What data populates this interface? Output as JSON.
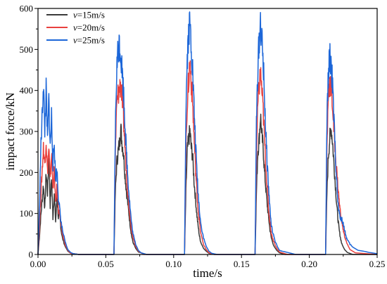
{
  "chart_data": {
    "type": "line",
    "title": "",
    "xlabel": "time/s",
    "ylabel": "impact force/kN",
    "xlim": [
      0,
      0.25
    ],
    "ylim": [
      0,
      600
    ],
    "x_ticks": [
      "0.00",
      "0.05",
      "0.10",
      "0.15",
      "0.20",
      "0.25"
    ],
    "y_ticks": [
      "0",
      "100",
      "200",
      "300",
      "400",
      "500",
      "600"
    ],
    "grid": false,
    "legend_position": "top-left",
    "series": [
      {
        "name": "v=15m/s",
        "legend_var": "v",
        "legend_rest": "=15m/s",
        "color": "#3a3a3a",
        "x": [
          0,
          0.001,
          0.002,
          0.003,
          0.004,
          0.005,
          0.006,
          0.007,
          0.008,
          0.009,
          0.01,
          0.011,
          0.012,
          0.013,
          0.014,
          0.015,
          0.016,
          0.017,
          0.018,
          0.02,
          0.022,
          0.024,
          0.03,
          0.056,
          0.057,
          0.058,
          0.059,
          0.06,
          0.061,
          0.062,
          0.063,
          0.064,
          0.065,
          0.066,
          0.067,
          0.068,
          0.069,
          0.07,
          0.072,
          0.074,
          0.08,
          0.108,
          0.109,
          0.11,
          0.111,
          0.112,
          0.113,
          0.114,
          0.115,
          0.116,
          0.117,
          0.118,
          0.119,
          0.12,
          0.122,
          0.124,
          0.126,
          0.13,
          0.16,
          0.161,
          0.162,
          0.163,
          0.164,
          0.165,
          0.166,
          0.167,
          0.168,
          0.169,
          0.17,
          0.171,
          0.172,
          0.174,
          0.176,
          0.178,
          0.182,
          0.212,
          0.213,
          0.214,
          0.215,
          0.216,
          0.217,
          0.218,
          0.219,
          0.22,
          0.221,
          0.222,
          0.223,
          0.224,
          0.226,
          0.228,
          0.232,
          0.25
        ],
        "y": [
          0,
          40,
          90,
          130,
          170,
          110,
          200,
          150,
          240,
          120,
          190,
          90,
          150,
          80,
          140,
          90,
          100,
          60,
          40,
          20,
          8,
          3,
          0,
          0,
          150,
          220,
          250,
          270,
          310,
          270,
          250,
          200,
          160,
          130,
          100,
          70,
          45,
          30,
          15,
          6,
          0,
          0,
          150,
          250,
          280,
          300,
          260,
          240,
          180,
          140,
          100,
          70,
          45,
          30,
          15,
          8,
          3,
          0,
          0,
          150,
          250,
          280,
          340,
          290,
          260,
          200,
          160,
          120,
          90,
          60,
          40,
          20,
          10,
          4,
          0,
          0,
          150,
          240,
          280,
          310,
          280,
          230,
          180,
          130,
          90,
          60,
          40,
          25,
          12,
          5,
          0,
          0
        ]
      },
      {
        "name": "v=20m/s",
        "legend_var": "v",
        "legend_rest": "=20m/s",
        "color": "#e8413e",
        "x": [
          0,
          0.001,
          0.002,
          0.003,
          0.004,
          0.005,
          0.006,
          0.007,
          0.008,
          0.009,
          0.01,
          0.011,
          0.012,
          0.013,
          0.014,
          0.015,
          0.016,
          0.017,
          0.018,
          0.02,
          0.022,
          0.024,
          0.03,
          0.056,
          0.057,
          0.058,
          0.059,
          0.06,
          0.061,
          0.062,
          0.063,
          0.064,
          0.065,
          0.066,
          0.067,
          0.068,
          0.069,
          0.07,
          0.072,
          0.074,
          0.078,
          0.108,
          0.109,
          0.11,
          0.111,
          0.112,
          0.113,
          0.114,
          0.115,
          0.116,
          0.117,
          0.118,
          0.119,
          0.12,
          0.122,
          0.124,
          0.126,
          0.13,
          0.16,
          0.161,
          0.162,
          0.163,
          0.164,
          0.165,
          0.166,
          0.167,
          0.168,
          0.169,
          0.17,
          0.171,
          0.172,
          0.174,
          0.176,
          0.178,
          0.184,
          0.212,
          0.213,
          0.214,
          0.215,
          0.216,
          0.217,
          0.218,
          0.219,
          0.22,
          0.221,
          0.222,
          0.223,
          0.224,
          0.225,
          0.226,
          0.228,
          0.23,
          0.234,
          0.25
        ],
        "y": [
          0,
          60,
          140,
          200,
          260,
          220,
          280,
          200,
          260,
          180,
          250,
          160,
          210,
          120,
          170,
          110,
          100,
          70,
          50,
          25,
          10,
          3,
          0,
          0,
          250,
          360,
          390,
          400,
          420,
          380,
          330,
          270,
          210,
          160,
          120,
          90,
          60,
          40,
          20,
          8,
          0,
          0,
          250,
          370,
          420,
          470,
          420,
          370,
          290,
          220,
          160,
          110,
          80,
          50,
          25,
          12,
          4,
          0,
          0,
          230,
          360,
          410,
          440,
          400,
          350,
          280,
          210,
          160,
          110,
          80,
          50,
          30,
          15,
          6,
          0,
          0,
          260,
          390,
          420,
          410,
          370,
          310,
          260,
          210,
          170,
          130,
          100,
          80,
          60,
          45,
          25,
          12,
          4,
          0
        ]
      },
      {
        "name": "v=25m/s",
        "legend_var": "v",
        "legend_rest": "=25m/s",
        "color": "#1c66d8",
        "x": [
          0,
          0.001,
          0.002,
          0.003,
          0.004,
          0.005,
          0.006,
          0.007,
          0.008,
          0.009,
          0.01,
          0.011,
          0.012,
          0.013,
          0.014,
          0.015,
          0.016,
          0.017,
          0.018,
          0.02,
          0.022,
          0.024,
          0.026,
          0.03,
          0.056,
          0.057,
          0.058,
          0.059,
          0.06,
          0.061,
          0.062,
          0.063,
          0.064,
          0.065,
          0.066,
          0.067,
          0.068,
          0.069,
          0.07,
          0.072,
          0.074,
          0.076,
          0.08,
          0.108,
          0.109,
          0.11,
          0.111,
          0.112,
          0.113,
          0.114,
          0.115,
          0.116,
          0.117,
          0.118,
          0.119,
          0.12,
          0.122,
          0.124,
          0.126,
          0.128,
          0.132,
          0.16,
          0.161,
          0.162,
          0.163,
          0.164,
          0.165,
          0.166,
          0.167,
          0.168,
          0.169,
          0.17,
          0.171,
          0.172,
          0.174,
          0.176,
          0.178,
          0.18,
          0.184,
          0.19,
          0.212,
          0.213,
          0.214,
          0.215,
          0.216,
          0.217,
          0.218,
          0.219,
          0.22,
          0.221,
          0.222,
          0.223,
          0.224,
          0.225,
          0.226,
          0.227,
          0.228,
          0.23,
          0.232,
          0.236,
          0.24,
          0.244,
          0.248,
          0.25
        ],
        "y": [
          0,
          100,
          250,
          330,
          420,
          300,
          400,
          280,
          380,
          260,
          340,
          220,
          270,
          180,
          210,
          140,
          110,
          80,
          60,
          30,
          12,
          5,
          2,
          0,
          0,
          300,
          450,
          500,
          515,
          490,
          450,
          400,
          330,
          260,
          200,
          150,
          110,
          75,
          50,
          25,
          10,
          4,
          0,
          0,
          350,
          480,
          540,
          565,
          510,
          450,
          360,
          280,
          210,
          150,
          110,
          75,
          40,
          20,
          8,
          3,
          0,
          0,
          320,
          450,
          520,
          565,
          520,
          470,
          380,
          290,
          220,
          160,
          110,
          70,
          40,
          22,
          10,
          8,
          5,
          0,
          0,
          330,
          440,
          480,
          470,
          420,
          340,
          260,
          190,
          130,
          100,
          90,
          85,
          75,
          60,
          45,
          35,
          25,
          18,
          10,
          8,
          5,
          3,
          2
        ]
      }
    ]
  }
}
